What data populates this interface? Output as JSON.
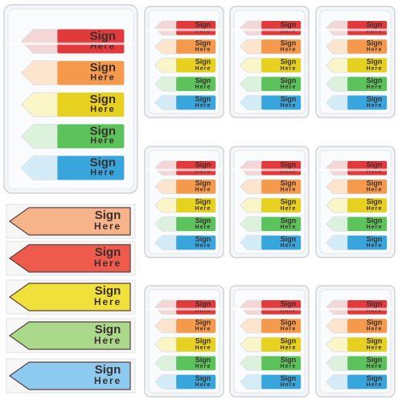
{
  "flag": {
    "line1": "Sign",
    "line2": "Here"
  }
}
